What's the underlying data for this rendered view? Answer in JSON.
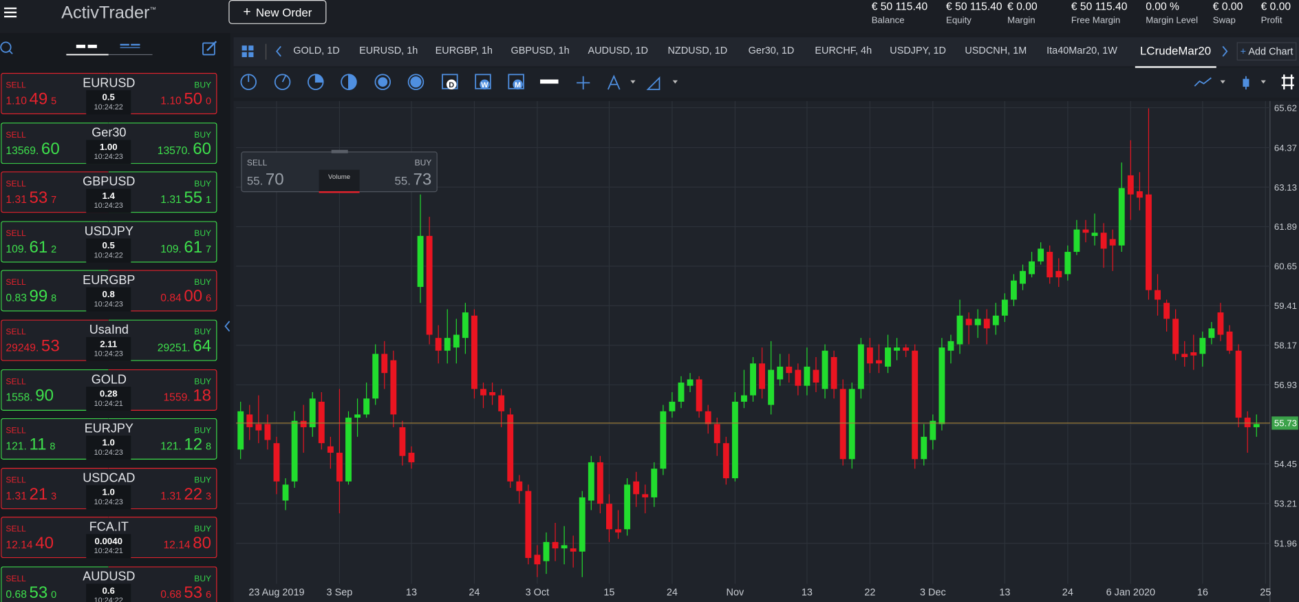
{
  "header": {
    "logo": "ActivTrader",
    "logo_mark": "™",
    "new_order": "New Order",
    "stats": [
      {
        "value": "€ 50 115.40",
        "label": "Balance"
      },
      {
        "value": "€ 50 115.40",
        "label": "Equity"
      },
      {
        "value": "€ 0.00",
        "label": "Margin"
      },
      {
        "value": "€ 50 115.40",
        "label": "Free Margin"
      },
      {
        "value": "0.00 %",
        "label": "Margin Level"
      },
      {
        "value": "€ 0.00",
        "label": "Swap"
      },
      {
        "value": "€ 0.00",
        "label": "Profit"
      }
    ]
  },
  "watchlist": {
    "sell_label": "SELL",
    "buy_label": "BUY",
    "items": [
      {
        "symbol": "EURUSD",
        "sell": [
          "1.10",
          "49",
          "5"
        ],
        "buy": [
          "1.10",
          "50",
          "0"
        ],
        "spread": "0.5",
        "time": "10:24:22",
        "sell_color": "#e8222d",
        "buy_color": "#e8222d"
      },
      {
        "symbol": "Ger30",
        "sell": [
          "13569.",
          "60"
        ],
        "buy": [
          "13570.",
          "60"
        ],
        "spread": "1.00",
        "time": "10:24:23",
        "sell_color": "#3ee04c",
        "buy_color": "#3ee04c"
      },
      {
        "symbol": "GBPUSD",
        "sell": [
          "1.31",
          "53",
          "7"
        ],
        "buy": [
          "1.31",
          "55",
          "1"
        ],
        "spread": "1.4",
        "time": "10:24:23",
        "sell_color": "#e8222d",
        "buy_color": "#3ee04c"
      },
      {
        "symbol": "USDJPY",
        "sell": [
          "109.",
          "61",
          "2"
        ],
        "buy": [
          "109.",
          "61",
          "7"
        ],
        "spread": "0.5",
        "time": "10:24:22",
        "sell_color": "#3ee04c",
        "buy_color": "#3ee04c"
      },
      {
        "symbol": "EURGBP",
        "sell": [
          "0.83",
          "99",
          "8"
        ],
        "buy": [
          "0.84",
          "00",
          "6"
        ],
        "spread": "0.8",
        "time": "10:24:23",
        "sell_color": "#3ee04c",
        "buy_color": "#e8222d"
      },
      {
        "symbol": "UsaInd",
        "sell": [
          "29249.",
          "53"
        ],
        "buy": [
          "29251.",
          "64"
        ],
        "spread": "2.11",
        "time": "10:24:23",
        "sell_color": "#e8222d",
        "buy_color": "#3ee04c"
      },
      {
        "symbol": "GOLD",
        "sell": [
          "1558.",
          "90"
        ],
        "buy": [
          "1559.",
          "18"
        ],
        "spread": "0.28",
        "time": "10:24:21",
        "sell_color": "#3ee04c",
        "buy_color": "#e8222d"
      },
      {
        "symbol": "EURJPY",
        "sell": [
          "121.",
          "11",
          "8"
        ],
        "buy": [
          "121.",
          "12",
          "8"
        ],
        "spread": "1.0",
        "time": "10:24:23",
        "sell_color": "#3ee04c",
        "buy_color": "#3ee04c"
      },
      {
        "symbol": "USDCAD",
        "sell": [
          "1.31",
          "21",
          "3"
        ],
        "buy": [
          "1.31",
          "22",
          "3"
        ],
        "spread": "1.0",
        "time": "10:24:23",
        "sell_color": "#e8222d",
        "buy_color": "#e8222d"
      },
      {
        "symbol": "FCA.IT",
        "sell": [
          "12.14",
          "40"
        ],
        "buy": [
          "12.14",
          "80"
        ],
        "spread": "0.0040",
        "time": "10:24:21",
        "sell_color": "#e8222d",
        "buy_color": "#e8222d"
      },
      {
        "symbol": "AUDUSD",
        "sell": [
          "0.68",
          "53",
          "0"
        ],
        "buy": [
          "0.68",
          "53",
          "6"
        ],
        "spread": "0.6",
        "time": "10:24:22",
        "sell_color": "#3ee04c",
        "buy_color": "#e8222d"
      }
    ]
  },
  "tabs": {
    "items": [
      "GOLD, 1D",
      "EURUSD, 1h",
      "EURGBP, 1h",
      "GBPUSD, 1h",
      "AUDUSD, 1D",
      "NZDUSD, 1D",
      "Ger30, 1D",
      "EURCHF, 4h",
      "USDJPY, 1D",
      "USDCNH, 1M",
      "Ita40Mar20, 1W",
      "LCrudeMar20"
    ],
    "active": 11,
    "add_chart": "Add Chart"
  },
  "toolbar": {
    "calendar_letters": [
      "D",
      "W",
      "M"
    ]
  },
  "quote_box": {
    "sell_label": "SELL",
    "buy_label": "BUY",
    "sell": [
      "55.",
      "70"
    ],
    "buy": [
      "55.",
      "73"
    ],
    "volume": "Volume"
  },
  "chart_data": {
    "type": "candlestick",
    "up_color": "#22dd2e",
    "down_color": "#ea1521",
    "grid": true,
    "categories": [
      null,
      null,
      null,
      null,
      "23 Aug 2019",
      null,
      null,
      null,
      null,
      null,
      null,
      "3 Sep",
      null,
      null,
      null,
      null,
      null,
      null,
      null,
      "13",
      null,
      null,
      null,
      null,
      null,
      null,
      "24",
      null,
      null,
      null,
      null,
      null,
      null,
      "3 Oct",
      null,
      null,
      null,
      null,
      null,
      null,
      null,
      "15",
      null,
      null,
      null,
      null,
      null,
      null,
      "24",
      null,
      null,
      null,
      null,
      null,
      null,
      "Nov",
      null,
      null,
      null,
      null,
      null,
      null,
      null,
      "13",
      null,
      null,
      null,
      null,
      null,
      null,
      "22",
      null,
      null,
      null,
      null,
      null,
      null,
      "3 Dec",
      null,
      null,
      null,
      null,
      null,
      null,
      null,
      "13",
      null,
      null,
      null,
      null,
      null,
      null,
      "24",
      null,
      null,
      null,
      null,
      null,
      null,
      "6 Jan 2020",
      null,
      null,
      null,
      null,
      null,
      null,
      null,
      "16",
      null,
      null,
      null,
      null,
      null,
      null,
      "25"
    ],
    "ohlc": [
      [
        54.9,
        56.4,
        54.6,
        56.1
      ],
      [
        56.0,
        56.3,
        55.2,
        55.6
      ],
      [
        55.7,
        56.6,
        55.1,
        55.5
      ],
      [
        55.7,
        56.0,
        54.9,
        55.2
      ],
      [
        55.1,
        55.3,
        53.5,
        53.9
      ],
      [
        53.3,
        54.0,
        53.0,
        53.8
      ],
      [
        53.9,
        56.1,
        53.7,
        55.8
      ],
      [
        55.8,
        56.3,
        54.8,
        55.6
      ],
      [
        55.6,
        56.7,
        55.3,
        56.5
      ],
      [
        56.4,
        56.7,
        54.9,
        55.1
      ],
      [
        55.0,
        55.3,
        54.3,
        54.8
      ],
      [
        54.8,
        56.8,
        52.9,
        53.9
      ],
      [
        53.9,
        56.1,
        53.8,
        55.9
      ],
      [
        55.9,
        56.5,
        55.3,
        56.0
      ],
      [
        56.0,
        57.0,
        55.9,
        56.5
      ],
      [
        56.5,
        58.2,
        56.3,
        57.9
      ],
      [
        57.9,
        58.3,
        56.8,
        57.3
      ],
      [
        57.7,
        58.0,
        55.6,
        56.0
      ],
      [
        55.6,
        55.8,
        54.4,
        54.7
      ],
      [
        54.8,
        55.0,
        54.3,
        54.5
      ],
      [
        60.0,
        62.9,
        59.5,
        61.6
      ],
      [
        61.6,
        62.2,
        58.2,
        58.5
      ],
      [
        58.4,
        58.8,
        57.6,
        58.0
      ],
      [
        58.0,
        59.3,
        57.6,
        58.4
      ],
      [
        58.1,
        59.0,
        57.6,
        58.5
      ],
      [
        58.4,
        59.5,
        57.9,
        59.2
      ],
      [
        59.1,
        59.3,
        56.5,
        56.8
      ],
      [
        56.8,
        57.0,
        56.2,
        56.6
      ],
      [
        56.7,
        57.0,
        56.3,
        56.6
      ],
      [
        56.6,
        56.8,
        55.6,
        56.1
      ],
      [
        56.0,
        56.2,
        53.7,
        53.9
      ],
      [
        53.9,
        54.1,
        53.2,
        53.6
      ],
      [
        53.6,
        53.8,
        51.3,
        51.5
      ],
      [
        51.6,
        51.9,
        50.9,
        51.3
      ],
      [
        51.4,
        52.3,
        51.0,
        52.0
      ],
      [
        52.0,
        52.6,
        51.4,
        51.8
      ],
      [
        51.8,
        52.5,
        51.3,
        51.9
      ],
      [
        51.8,
        52.2,
        51.2,
        51.7
      ],
      [
        51.7,
        53.6,
        50.9,
        53.4
      ],
      [
        53.3,
        54.7,
        53.0,
        54.5
      ],
      [
        54.5,
        54.7,
        52.9,
        53.2
      ],
      [
        53.2,
        53.5,
        52.0,
        52.4
      ],
      [
        52.4,
        53.0,
        52.1,
        52.3
      ],
      [
        52.4,
        54.0,
        52.2,
        53.8
      ],
      [
        53.9,
        54.2,
        53.1,
        53.5
      ],
      [
        53.5,
        53.8,
        52.9,
        53.4
      ],
      [
        53.4,
        54.5,
        53.1,
        54.3
      ],
      [
        54.3,
        56.3,
        54.1,
        56.1
      ],
      [
        56.1,
        56.7,
        55.9,
        56.4
      ],
      [
        56.4,
        57.2,
        56.2,
        57.0
      ],
      [
        56.9,
        57.3,
        56.7,
        57.1
      ],
      [
        57.1,
        57.2,
        55.9,
        56.1
      ],
      [
        56.1,
        56.3,
        55.4,
        55.7
      ],
      [
        55.7,
        55.9,
        54.7,
        55.1
      ],
      [
        55.1,
        55.3,
        53.8,
        54.0
      ],
      [
        54.0,
        56.7,
        53.9,
        56.4
      ],
      [
        56.4,
        57.4,
        56.2,
        56.6
      ],
      [
        56.6,
        57.8,
        56.4,
        57.6
      ],
      [
        57.6,
        58.1,
        56.5,
        56.8
      ],
      [
        56.3,
        58.3,
        56.0,
        57.4
      ],
      [
        57.1,
        57.9,
        56.9,
        57.5
      ],
      [
        57.5,
        57.9,
        57.0,
        57.3
      ],
      [
        57.4,
        57.6,
        56.6,
        56.9
      ],
      [
        56.9,
        58.1,
        56.6,
        57.5
      ],
      [
        57.4,
        57.8,
        56.7,
        57.0
      ],
      [
        56.8,
        58.2,
        56.5,
        58.0
      ],
      [
        57.8,
        58.0,
        56.5,
        56.8
      ],
      [
        56.8,
        57.1,
        54.4,
        54.6
      ],
      [
        54.6,
        57.0,
        54.3,
        56.8
      ],
      [
        56.8,
        58.4,
        56.5,
        58.2
      ],
      [
        58.1,
        58.4,
        57.3,
        57.6
      ],
      [
        57.7,
        58.2,
        57.3,
        57.6
      ],
      [
        57.5,
        58.5,
        57.3,
        58.1
      ],
      [
        58.0,
        58.4,
        57.7,
        58.1
      ],
      [
        58.1,
        58.2,
        57.8,
        58.0
      ],
      [
        58.0,
        58.2,
        54.3,
        54.6
      ],
      [
        54.6,
        55.7,
        54.4,
        55.3
      ],
      [
        55.2,
        56.0,
        54.9,
        55.8
      ],
      [
        55.7,
        58.4,
        55.5,
        58.1
      ],
      [
        58.0,
        58.5,
        57.6,
        58.3
      ],
      [
        58.2,
        59.6,
        57.9,
        59.1
      ],
      [
        59.0,
        59.2,
        58.2,
        58.8
      ],
      [
        58.8,
        59.3,
        58.4,
        59.0
      ],
      [
        59.0,
        59.3,
        58.2,
        58.7
      ],
      [
        58.8,
        59.5,
        58.5,
        59.1
      ],
      [
        59.1,
        59.8,
        58.9,
        59.6
      ],
      [
        59.6,
        60.4,
        59.4,
        60.2
      ],
      [
        60.1,
        60.7,
        59.9,
        60.5
      ],
      [
        60.4,
        61.1,
        60.3,
        60.8
      ],
      [
        60.8,
        61.4,
        60.7,
        61.2
      ],
      [
        61.1,
        61.3,
        60.1,
        60.3
      ],
      [
        60.5,
        60.9,
        60.0,
        60.3
      ],
      [
        60.4,
        61.3,
        60.2,
        61.1
      ],
      [
        61.1,
        62.1,
        61.0,
        61.8
      ],
      [
        61.8,
        62.1,
        61.4,
        61.7
      ],
      [
        61.6,
        62.3,
        61.3,
        61.7
      ],
      [
        61.7,
        62.0,
        60.6,
        61.2
      ],
      [
        61.5,
        61.8,
        60.5,
        61.3
      ],
      [
        61.3,
        63.9,
        61.1,
        63.1
      ],
      [
        63.5,
        64.6,
        62.1,
        62.9
      ],
      [
        63.0,
        63.6,
        62.4,
        62.8
      ],
      [
        62.9,
        65.6,
        59.6,
        59.9
      ],
      [
        59.9,
        60.4,
        59.1,
        59.6
      ],
      [
        59.5,
        59.6,
        58.6,
        59.0
      ],
      [
        59.0,
        59.3,
        57.7,
        57.9
      ],
      [
        57.9,
        58.3,
        57.5,
        57.8
      ],
      [
        57.95,
        58.5,
        57.4,
        57.85
      ],
      [
        57.9,
        58.6,
        57.5,
        58.4
      ],
      [
        58.4,
        58.9,
        58.2,
        58.7
      ],
      [
        59.2,
        59.5,
        58.3,
        58.5
      ],
      [
        58.6,
        58.8,
        57.9,
        58.0
      ],
      [
        58.0,
        58.2,
        55.6,
        55.9
      ],
      [
        55.9,
        56.1,
        54.8,
        55.6
      ],
      [
        55.6,
        56.0,
        55.3,
        55.7
      ],
      null
    ],
    "ylim": [
      50.69,
      65.83
    ],
    "yticks": [
      65.62,
      64.37,
      63.13,
      61.89,
      60.65,
      59.41,
      58.17,
      56.93,
      55.69,
      54.45,
      53.21,
      51.96
    ],
    "last": 55.73,
    "last_color": "#3ba24a"
  }
}
